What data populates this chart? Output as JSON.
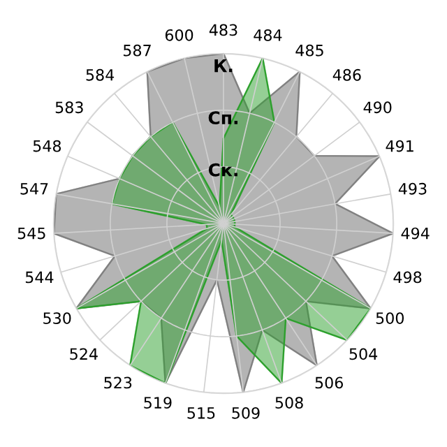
{
  "chart_data": {
    "type": "radar",
    "categories": [
      "483",
      "484",
      "485",
      "486",
      "490",
      "491",
      "493",
      "494",
      "498",
      "500",
      "504",
      "506",
      "508",
      "509",
      "515",
      "519",
      "523",
      "524",
      "530",
      "544",
      "545",
      "547",
      "548",
      "583",
      "584",
      "587",
      "600"
    ],
    "series": [
      {
        "color": "#b4b4b4",
        "values": [
          3,
          2,
          3,
          2,
          2,
          3,
          2,
          3,
          2,
          3,
          2,
          3,
          2,
          3,
          1,
          3,
          2,
          2,
          3,
          2,
          3,
          3,
          2,
          2,
          2,
          3,
          3
        ]
      },
      {
        "color": "#2ca02c",
        "values": [
          1.5,
          3,
          2,
          0.2,
          0.2,
          0.2,
          0.2,
          0.2,
          0.2,
          3,
          3,
          2,
          3,
          2,
          0.3,
          3,
          3,
          2,
          3,
          0.3,
          0.3,
          2,
          2,
          2,
          2,
          2,
          0.3
        ]
      }
    ],
    "ylim": [
      0,
      3
    ],
    "yticks": [
      {
        "value": 1,
        "label": "Ск."
      },
      {
        "value": 2,
        "label": "Сп."
      },
      {
        "value": 3,
        "label": "К."
      }
    ],
    "grid": true
  }
}
